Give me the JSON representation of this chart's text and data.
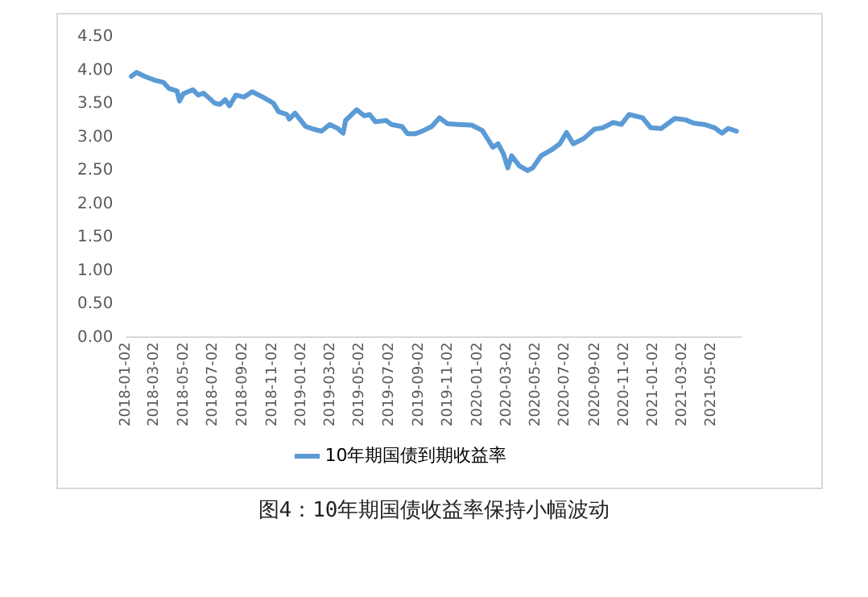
{
  "chart_data": {
    "type": "line",
    "title": "图4：10年期国债收益率保持小幅波动",
    "xlim": [
      "2018-01-02",
      "2021-07-02"
    ],
    "xticks": [
      "2018-01-02",
      "2018-03-02",
      "2018-05-02",
      "2018-07-02",
      "2018-09-02",
      "2018-11-02",
      "2019-01-02",
      "2019-03-02",
      "2019-05-02",
      "2019-07-02",
      "2019-09-02",
      "2019-11-02",
      "2020-01-02",
      "2020-03-02",
      "2020-05-02",
      "2020-07-02",
      "2020-09-02",
      "2020-11-02",
      "2021-01-02",
      "2021-03-02",
      "2021-05-02"
    ],
    "ylim": [
      0,
      4.5
    ],
    "yticks": [
      {
        "value": 0,
        "label": "0.00"
      },
      {
        "value": 0.5,
        "label": "0.50"
      },
      {
        "value": 1,
        "label": "1.00"
      },
      {
        "value": 1.5,
        "label": "1.50"
      },
      {
        "value": 2,
        "label": "2.00"
      },
      {
        "value": 2.5,
        "label": "2.50"
      },
      {
        "value": 3,
        "label": "3.00"
      },
      {
        "value": 3.5,
        "label": "3.50"
      },
      {
        "value": 4,
        "label": "4.00"
      },
      {
        "value": 4.5,
        "label": "4.50"
      }
    ],
    "grid": false,
    "legend": "bottom",
    "marker": "none",
    "line_style": "solid",
    "series": [
      {
        "name": "10年期国债到期收益率",
        "color": "#5b9bd5",
        "x": [
          "2018-01-13",
          "2018-01-24",
          "2018-02-10",
          "2018-03-04",
          "2018-03-21",
          "2018-04-01",
          "2018-04-18",
          "2018-04-23",
          "2018-05-01",
          "2018-05-21",
          "2018-06-01",
          "2018-06-12",
          "2018-07-05",
          "2018-07-16",
          "2018-07-27",
          "2018-08-05",
          "2018-08-18",
          "2018-09-04",
          "2018-09-21",
          "2018-10-13",
          "2018-11-04",
          "2018-11-15",
          "2018-12-02",
          "2018-12-07",
          "2018-12-19",
          "2019-01-10",
          "2019-01-26",
          "2019-02-12",
          "2019-03-01",
          "2019-03-18",
          "2019-03-29",
          "2019-04-03",
          "2019-04-26",
          "2019-05-12",
          "2019-05-23",
          "2019-06-04",
          "2019-06-26",
          "2019-07-07",
          "2019-07-29",
          "2019-08-10",
          "2019-08-26",
          "2019-09-12",
          "2019-09-29",
          "2019-10-15",
          "2019-11-01",
          "2019-11-23",
          "2019-12-21",
          "2020-01-12",
          "2020-02-03",
          "2020-02-14",
          "2020-02-25",
          "2020-03-05",
          "2020-03-13",
          "2020-03-29",
          "2020-04-15",
          "2020-04-26",
          "2020-05-13",
          "2020-06-04",
          "2020-06-21",
          "2020-07-05",
          "2020-07-19",
          "2020-08-10",
          "2020-09-01",
          "2020-09-18",
          "2020-10-10",
          "2020-10-27",
          "2020-11-12",
          "2020-12-10",
          "2020-12-27",
          "2021-01-18",
          "2021-02-15",
          "2021-03-09",
          "2021-03-26",
          "2021-04-17",
          "2021-05-09",
          "2021-05-24",
          "2021-06-06",
          "2021-06-23"
        ],
        "values": [
          3.91,
          3.97,
          3.91,
          3.85,
          3.82,
          3.73,
          3.69,
          3.54,
          3.65,
          3.71,
          3.63,
          3.66,
          3.51,
          3.49,
          3.56,
          3.47,
          3.63,
          3.6,
          3.68,
          3.6,
          3.51,
          3.38,
          3.34,
          3.27,
          3.36,
          3.16,
          3.12,
          3.09,
          3.19,
          3.13,
          3.06,
          3.25,
          3.41,
          3.32,
          3.34,
          3.23,
          3.25,
          3.19,
          3.16,
          3.05,
          3.05,
          3.1,
          3.16,
          3.29,
          3.2,
          3.19,
          3.18,
          3.1,
          2.85,
          2.9,
          2.75,
          2.54,
          2.72,
          2.57,
          2.5,
          2.54,
          2.72,
          2.81,
          2.9,
          3.07,
          2.9,
          2.98,
          3.12,
          3.14,
          3.22,
          3.19,
          3.34,
          3.29,
          3.14,
          3.13,
          3.28,
          3.26,
          3.21,
          3.19,
          3.14,
          3.06,
          3.13,
          3.09
        ]
      }
    ]
  }
}
